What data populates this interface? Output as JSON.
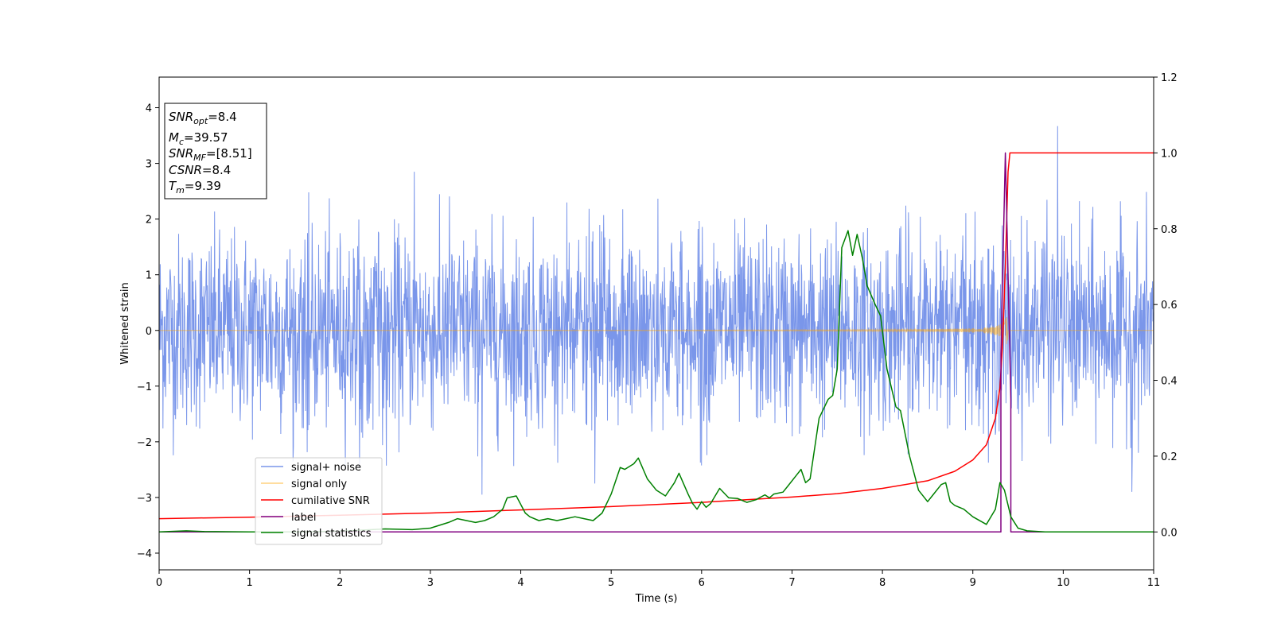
{
  "chart_data": {
    "type": "line",
    "xlabel": "Time (s)",
    "ylabel": "Whitened strain",
    "xlim": [
      0,
      11
    ],
    "ylim_left": [
      -4.3,
      4.55
    ],
    "ylim_right": [
      -0.1,
      1.2
    ],
    "x_ticks": [
      "0",
      "1",
      "2",
      "3",
      "4",
      "5",
      "6",
      "7",
      "8",
      "9",
      "10",
      "11"
    ],
    "y_ticks_left": [
      "−4",
      "−3",
      "−2",
      "−1",
      "0",
      "1",
      "2",
      "3",
      "4"
    ],
    "y_ticks_right": [
      "0.0",
      "0.2",
      "0.4",
      "0.6",
      "0.8",
      "1.0",
      "1.2"
    ],
    "grid": false,
    "legend_position": "lower-left",
    "annotation": {
      "snr_opt": {
        "sym": "SNR",
        "sub": "opt",
        "rest": "=8.4"
      },
      "mc": {
        "sym": "M",
        "sub": "c",
        "rest": "=39.57"
      },
      "snr_mf": {
        "sym": "SNR",
        "sub": "MF",
        "rest": "=[8.51]"
      },
      "csnr": {
        "sym": "CSNR",
        "sub": "",
        "rest": "=8.4"
      },
      "tm": {
        "sym": "T",
        "sub": "m",
        "rest": "=9.39"
      }
    },
    "series": [
      {
        "name": "signal+ noise",
        "axis": "left",
        "color": "#4169e1",
        "kind": "noise",
        "envelope": {
          "sigma": 0.9,
          "typical_max": 2.5,
          "outliers": [
            [
              2.82,
              2.85
            ],
            [
              3.57,
              -2.95
            ],
            [
              4.82,
              -2.75
            ],
            [
              9.94,
              3.67
            ],
            [
              10.76,
              -2.9
            ]
          ]
        }
      },
      {
        "name": "signal only",
        "axis": "left",
        "color": "#ffa500",
        "kind": "chirp",
        "merger_time": 9.39
      },
      {
        "name": "cumilative SNR",
        "axis": "right",
        "color": "#ff0000",
        "x": [
          0,
          1,
          2,
          3,
          4,
          5,
          6,
          7,
          7.5,
          8,
          8.5,
          8.8,
          9.0,
          9.15,
          9.25,
          9.3,
          9.33,
          9.36,
          9.39,
          9.41,
          11
        ],
        "y": [
          0.035,
          0.039,
          0.044,
          0.05,
          0.058,
          0.067,
          0.078,
          0.092,
          0.101,
          0.115,
          0.135,
          0.16,
          0.19,
          0.23,
          0.3,
          0.38,
          0.5,
          0.7,
          0.95,
          1.0,
          1.0
        ]
      },
      {
        "name": "label",
        "axis": "right",
        "color": "#800080",
        "x": [
          0,
          9.31,
          9.31,
          9.36,
          9.36,
          9.42,
          9.42,
          11
        ],
        "y": [
          0,
          0,
          0.47,
          1.0,
          1.0,
          0.35,
          0,
          0
        ]
      },
      {
        "name": "signal statistics",
        "axis": "right",
        "color": "#008000",
        "x": [
          0,
          0.3,
          0.5,
          1.0,
          1.5,
          2.0,
          2.5,
          2.8,
          3.0,
          3.2,
          3.3,
          3.5,
          3.6,
          3.7,
          3.8,
          3.85,
          3.95,
          4.05,
          4.1,
          4.2,
          4.3,
          4.4,
          4.5,
          4.6,
          4.7,
          4.8,
          4.9,
          5.0,
          5.1,
          5.15,
          5.25,
          5.3,
          5.4,
          5.5,
          5.6,
          5.7,
          5.75,
          5.85,
          5.9,
          5.95,
          6.0,
          6.05,
          6.1,
          6.2,
          6.3,
          6.4,
          6.5,
          6.6,
          6.7,
          6.75,
          6.8,
          6.9,
          6.95,
          7.05,
          7.1,
          7.15,
          7.2,
          7.3,
          7.4,
          7.45,
          7.5,
          7.55,
          7.62,
          7.67,
          7.72,
          7.78,
          7.83,
          7.92,
          7.98,
          8.05,
          8.15,
          8.2,
          8.3,
          8.4,
          8.5,
          8.55,
          8.65,
          8.7,
          8.75,
          8.8,
          8.9,
          9.0,
          9.15,
          9.25,
          9.3,
          9.35,
          9.42,
          9.5,
          9.6,
          9.8,
          10.0,
          10.5,
          11
        ],
        "y": [
          0.0,
          0.003,
          0.001,
          0.0,
          0.0,
          0.002,
          0.008,
          0.006,
          0.01,
          0.025,
          0.035,
          0.025,
          0.03,
          0.04,
          0.06,
          0.09,
          0.095,
          0.05,
          0.04,
          0.03,
          0.035,
          0.03,
          0.035,
          0.04,
          0.035,
          0.03,
          0.05,
          0.1,
          0.17,
          0.165,
          0.18,
          0.195,
          0.14,
          0.11,
          0.095,
          0.13,
          0.155,
          0.1,
          0.075,
          0.06,
          0.08,
          0.065,
          0.075,
          0.115,
          0.09,
          0.088,
          0.078,
          0.085,
          0.098,
          0.09,
          0.1,
          0.105,
          0.12,
          0.15,
          0.165,
          0.13,
          0.14,
          0.3,
          0.35,
          0.36,
          0.43,
          0.75,
          0.795,
          0.73,
          0.785,
          0.72,
          0.65,
          0.6,
          0.57,
          0.43,
          0.33,
          0.32,
          0.2,
          0.11,
          0.08,
          0.095,
          0.125,
          0.13,
          0.08,
          0.07,
          0.06,
          0.04,
          0.02,
          0.06,
          0.13,
          0.11,
          0.04,
          0.01,
          0.003,
          0.0,
          0.0,
          0.0,
          0.0
        ]
      }
    ]
  }
}
